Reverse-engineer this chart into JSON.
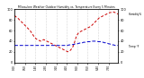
{
  "title": "Milwaukee Weather Outdoor Humidity vs. Temperature Every 5 Minutes",
  "red_label": "Humidity%",
  "blue_label": "Temp °F",
  "background_color": "#ffffff",
  "grid_color": "#b0b0b0",
  "red_color": "#cc0000",
  "blue_color": "#0000cc",
  "ylim_left": [
    0,
    100
  ],
  "ylim_right": [
    0,
    100
  ],
  "n_points": 100,
  "red_y": [
    88,
    87,
    85,
    84,
    82,
    80,
    78,
    76,
    74,
    72,
    70,
    68,
    66,
    64,
    62,
    60,
    57,
    54,
    51,
    48,
    46,
    44,
    43,
    42,
    41,
    40,
    41,
    42,
    43,
    42,
    41,
    40,
    39,
    38,
    37,
    36,
    35,
    34,
    33,
    32,
    31,
    30,
    29,
    28,
    27,
    26,
    25,
    24,
    23,
    22,
    21,
    20,
    21,
    22,
    24,
    27,
    30,
    35,
    42,
    48,
    52,
    55,
    57,
    58,
    59,
    60,
    61,
    62,
    63,
    64,
    65,
    66,
    67,
    68,
    70,
    72,
    74,
    76,
    78,
    80,
    82,
    84,
    85,
    86,
    87,
    88,
    89,
    90,
    91,
    92,
    93,
    94,
    94,
    95,
    95,
    95,
    94,
    93,
    92,
    91
  ],
  "blue_y": [
    32,
    32,
    32,
    32,
    32,
    32,
    32,
    32,
    32,
    32,
    32,
    32,
    32,
    32,
    32,
    32,
    32,
    32,
    32,
    32,
    32,
    32,
    32,
    32,
    32,
    32,
    32,
    32,
    32,
    32,
    32,
    32,
    32,
    32,
    32,
    32,
    32,
    32,
    32,
    32,
    32,
    32,
    32,
    32,
    32,
    32,
    32,
    32,
    32,
    32,
    32,
    32,
    33,
    33,
    33,
    33,
    34,
    34,
    35,
    35,
    35,
    36,
    36,
    37,
    37,
    37,
    38,
    38,
    38,
    38,
    39,
    39,
    39,
    40,
    40,
    40,
    40,
    40,
    40,
    40,
    39,
    39,
    39,
    38,
    38,
    38,
    37,
    37,
    36,
    36,
    35,
    35,
    34,
    34,
    33,
    33,
    32,
    32,
    32,
    32
  ],
  "x_tick_spacing": 10,
  "left_y_tick_spacing": 20,
  "right_y_ticks": [
    0,
    20,
    40,
    60,
    80,
    100
  ]
}
